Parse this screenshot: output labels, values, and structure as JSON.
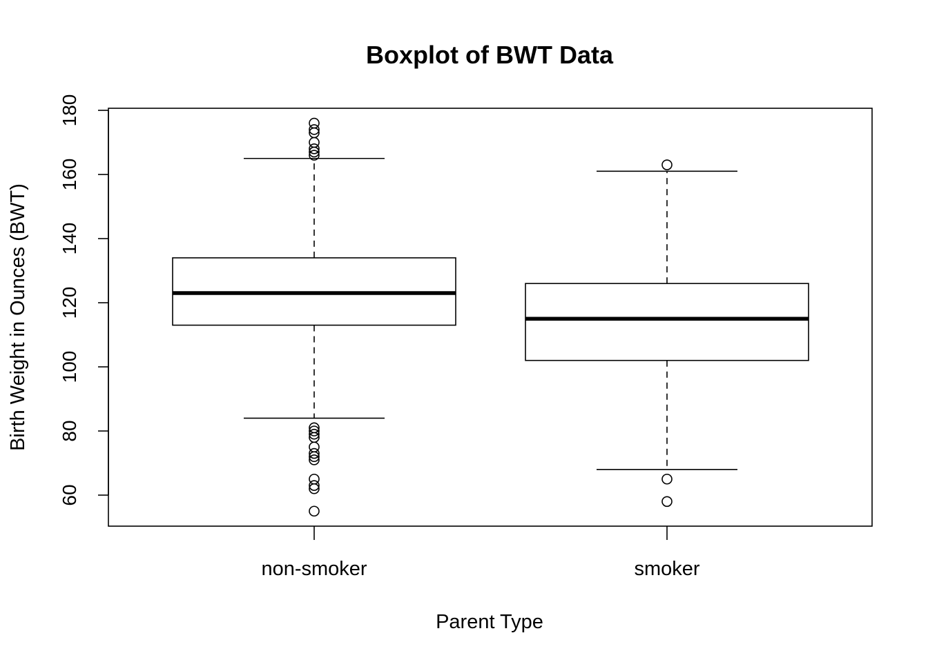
{
  "chart_data": {
    "type": "boxplot",
    "title": "Boxplot of BWT Data",
    "xlabel": "Parent Type",
    "ylabel": "Birth Weight in Ounces (BWT)",
    "ylim": [
      50,
      180
    ],
    "yticks": [
      60,
      80,
      100,
      120,
      140,
      160,
      180
    ],
    "ytick_labels": [
      "60",
      "80",
      "100",
      "120",
      "140",
      "160",
      "180"
    ],
    "categories": [
      "non-smoker",
      "smoker"
    ],
    "boxes": [
      {
        "name": "non-smoker",
        "whisker_low": 84,
        "q1": 113,
        "median": 123,
        "q3": 134,
        "whisker_high": 165,
        "outliers": [
          55,
          62,
          63,
          65,
          71,
          72,
          73,
          75,
          78,
          79,
          80,
          81,
          166,
          167,
          168,
          170,
          173,
          174,
          176
        ]
      },
      {
        "name": "smoker",
        "whisker_low": 68,
        "q1": 102,
        "median": 115,
        "q3": 126,
        "whisker_high": 161,
        "outliers": [
          58,
          65,
          163
        ]
      }
    ],
    "grid": false,
    "legend": "none"
  }
}
